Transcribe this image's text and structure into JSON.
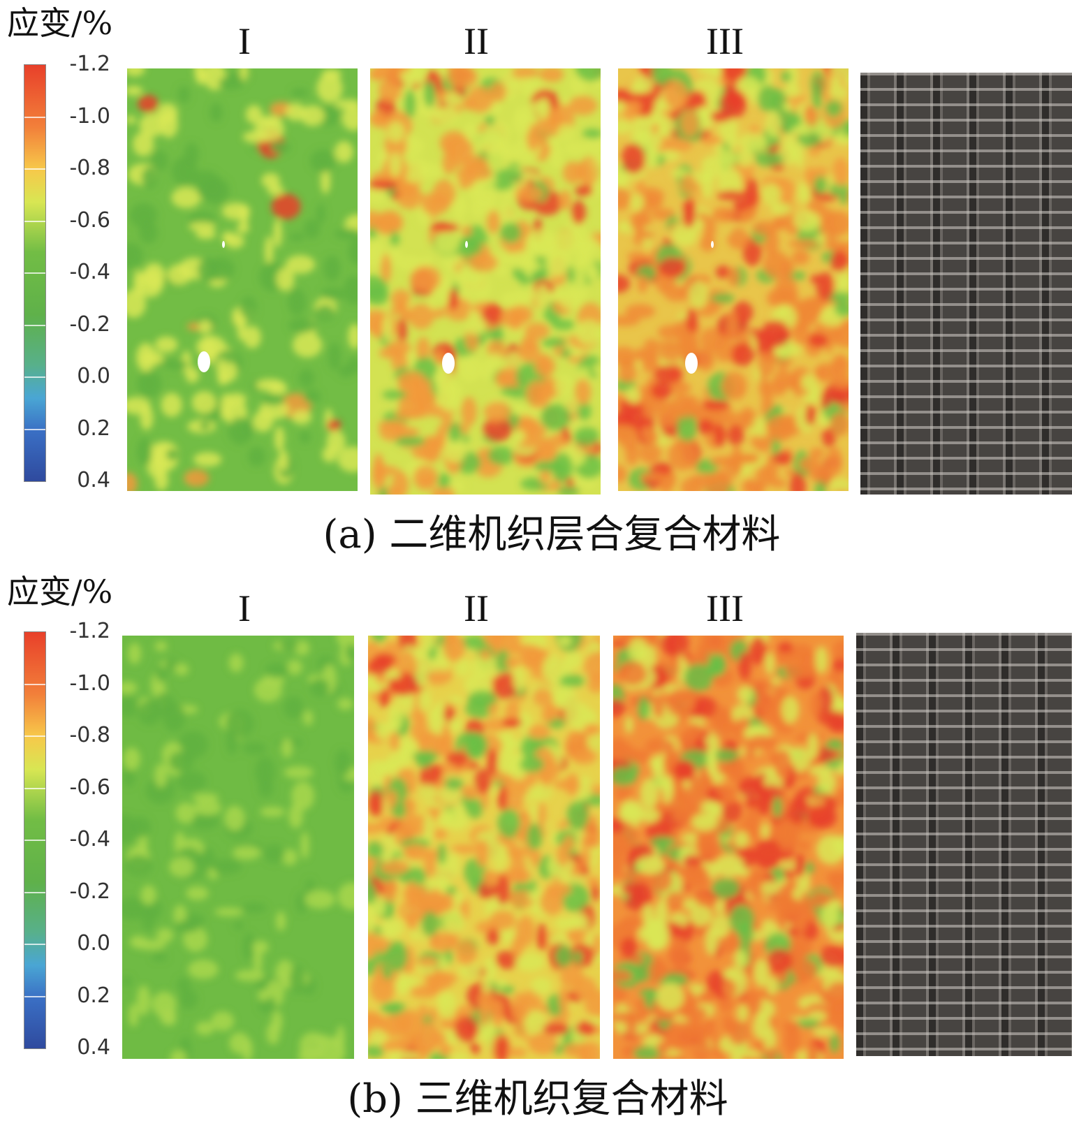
{
  "unit_label": "应变/%",
  "colorbar_ticks": [
    "-1.2",
    "-1.0",
    "-0.8",
    "-0.6",
    "-0.4",
    "-0.2",
    "0.0",
    "0.2",
    "0.4"
  ],
  "stage_labels": [
    "I",
    "II",
    "III"
  ],
  "figure_a": {
    "caption": "(a) 二维机织层合复合材料"
  },
  "figure_b": {
    "caption": "(b) 三维机织复合材料"
  },
  "colors": {
    "green": "#6abf45",
    "yellow": "#d9e756",
    "orange": "#f29a3c",
    "red": "#e8402a",
    "cyan": "#4aa6d4",
    "blue": "#2f4a9e"
  }
}
